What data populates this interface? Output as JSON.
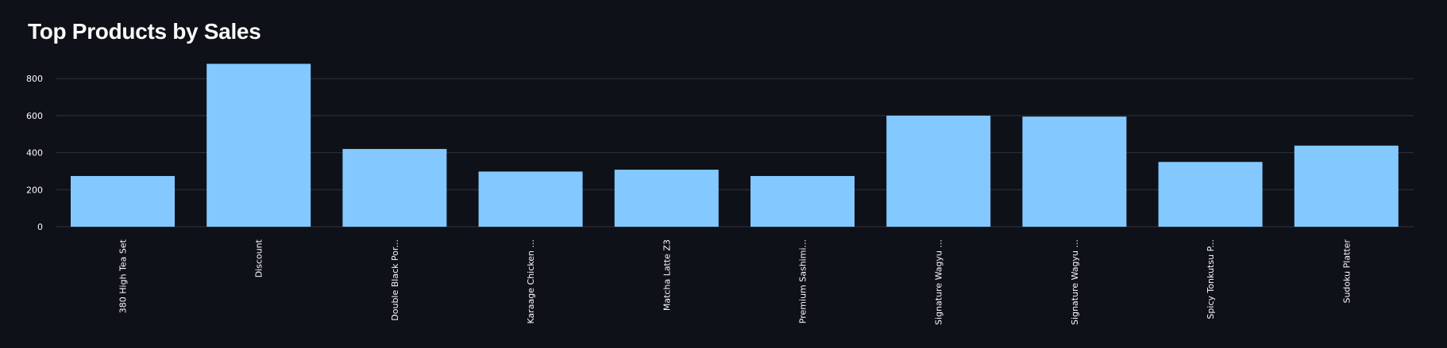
{
  "page": {
    "title": "Top Products by Sales"
  },
  "chart_data": {
    "type": "bar",
    "title": "Top Products by Sales",
    "xlabel": "",
    "ylabel": "",
    "categories": [
      "380 High Tea Set",
      "Discount",
      "Double Black Por...",
      "Karaage Chicken ...",
      "Matcha Latte Z3",
      "Premium Sashimi...",
      "Signature Wagyu ...",
      "Signature Wagyu ...",
      "Spicy Tonkutsu P...",
      "Sudoku Platter"
    ],
    "values": [
      274,
      880,
      420,
      298,
      308,
      274,
      600,
      595,
      350,
      438
    ],
    "ylim": [
      0,
      960
    ],
    "yticks": [
      0,
      200,
      400,
      600,
      800
    ],
    "grid": true,
    "colors": {
      "bar": "#83c9ff",
      "grid": "#31333f",
      "text": "#fafafa",
      "background": "#0e1117"
    }
  }
}
